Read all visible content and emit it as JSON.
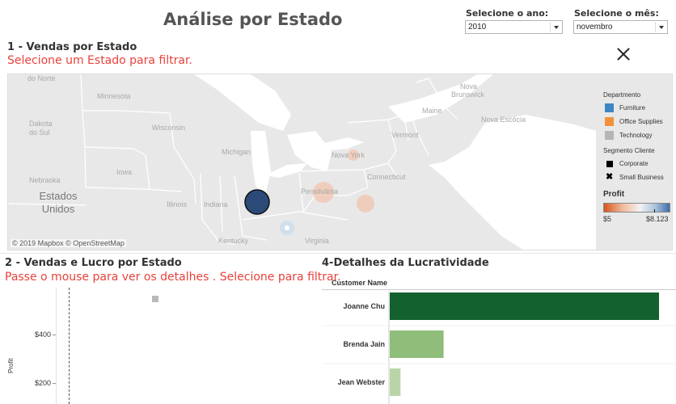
{
  "header": {
    "title": "Análise por Estado"
  },
  "filters": {
    "year": {
      "label": "Selecione o ano:",
      "value": "2010"
    },
    "month": {
      "label": "Selecione o mês:",
      "value": "novembro"
    }
  },
  "section1": {
    "title": "1 - Vendas por Estado",
    "hint": "Selecione um Estado para filtrar."
  },
  "map": {
    "labels": {
      "do_norte": "do Norte",
      "minnesota": "Minnesota",
      "dakota": "Dakota",
      "do_sul": "do Sul",
      "wisconsin": "Wisconsin",
      "iowa": "Iowa",
      "michigan": "Michigan",
      "nebraska": "Nebraska",
      "illinois": "Illinois",
      "indiana": "Indiana",
      "estados": "Estados",
      "unidos": "Unidos",
      "kentucky": "Kentucky",
      "virginia": "Virginia",
      "pensilvania": "Pensilvânia",
      "nova_york": "Nova York",
      "connecticut": "Connecticut",
      "vermont": "Vermont",
      "maine": "Maine",
      "nova_brunswick": "Nova",
      "brunswick": "Brunswick",
      "nova_escocia": "Nova Escócia"
    },
    "attribution": "© 2019 Mapbox © OpenStreetMap",
    "highlight_color": "#2b4a78"
  },
  "legend": {
    "department_title": "Departmento",
    "departments": [
      {
        "label": "Furniture",
        "color": "#3d86c1"
      },
      {
        "label": "Office Supplies",
        "color": "#f2913d"
      },
      {
        "label": "Technology",
        "color": "#b5b5b5"
      }
    ],
    "segment_title": "Segmento Cliente",
    "segments": [
      {
        "label": "Corporate",
        "icon": "square-icon"
      },
      {
        "label": "Small Business",
        "icon": "cross-icon"
      }
    ],
    "profit_title": "Profit",
    "profit_min": "$5",
    "profit_max": "$8.123"
  },
  "section2": {
    "title": "2 - Vendas e Lucro por Estado",
    "hint": "Passe o mouse para ver os detalhes . Selecione para filtrar.",
    "y_axis_title": "Profit",
    "y_ticks": [
      "$400",
      "$200"
    ]
  },
  "section4": {
    "title": "4-Detalhes da Lucratividade",
    "column_header": "Customer Name"
  },
  "chart_data": {
    "type": "bar",
    "categories": [
      "Joanne Chu",
      "Brenda Jain",
      "Jean Webster"
    ],
    "values": [
      100,
      20,
      4
    ],
    "colors": [
      "#13612e",
      "#8fbd7a",
      "#b9d5a8"
    ]
  }
}
